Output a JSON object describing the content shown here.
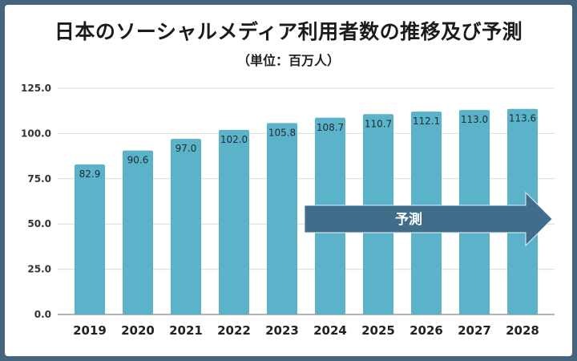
{
  "page": {
    "title": "日本のソーシャルメディア利用者数の推移及び予測",
    "subtitle": "（単位：百万人）"
  },
  "colors": {
    "frame": "#46647d",
    "bar": "#5bb3ca",
    "arrow": "#3f6d8a",
    "grid": "#d9d9d9"
  },
  "chart_data": {
    "type": "bar",
    "title": "日本のソーシャルメディア利用者数の推移及び予測",
    "subtitle": "（単位：百万人）",
    "xlabel": "",
    "ylabel": "",
    "categories": [
      "2019",
      "2020",
      "2021",
      "2022",
      "2023",
      "2024",
      "2025",
      "2026",
      "2027",
      "2028"
    ],
    "values": [
      82.9,
      90.6,
      97.0,
      102.0,
      105.8,
      108.7,
      110.7,
      112.1,
      113.0,
      113.6
    ],
    "value_labels": [
      "82.9",
      "90.6",
      "97.0",
      "102.0",
      "105.8",
      "108.7",
      "110.7",
      "112.1",
      "113.0",
      "113.6"
    ],
    "ylim": [
      0,
      125
    ],
    "yticks": [
      "0.0",
      "25.0",
      "50.0",
      "75.0",
      "100.0",
      "125.0"
    ],
    "grid": true,
    "annotation": {
      "text": "予測",
      "from_category": "2024",
      "to_category": "2028"
    }
  }
}
